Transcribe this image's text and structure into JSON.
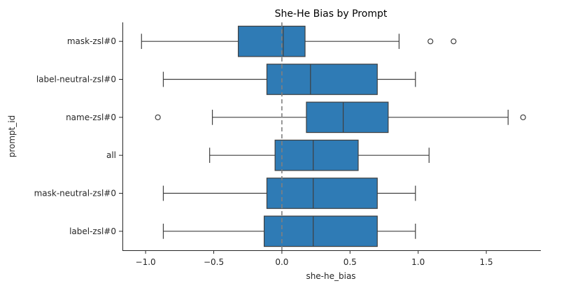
{
  "chart_data": {
    "type": "box",
    "orientation": "horizontal",
    "title": "She-He Bias by Prompt",
    "xlabel": "she-he_bias",
    "ylabel": "prompt_id",
    "xlim": [
      -1.17,
      1.9
    ],
    "xticks": [
      -1.0,
      -0.5,
      0.0,
      0.5,
      1.0,
      1.5
    ],
    "xtick_labels": [
      "−1.0",
      "−0.5",
      "0.0",
      "0.5",
      "1.0",
      "1.5"
    ],
    "reference_line": {
      "x": 0.0,
      "style": "dashed",
      "color": "#808080"
    },
    "box_color": "#2f7bb5",
    "categories": [
      "mask-zsl#0",
      "label-neutral-zsl#0",
      "name-zsl#0",
      "all",
      "mask-neutral-zsl#0",
      "label-zsl#0"
    ],
    "boxes": [
      {
        "label": "mask-zsl#0",
        "whisker_low": -1.03,
        "q1": -0.32,
        "median": 0.01,
        "q3": 0.17,
        "whisker_high": 0.86,
        "outliers": [
          1.09,
          1.26
        ]
      },
      {
        "label": "label-neutral-zsl#0",
        "whisker_low": -0.87,
        "q1": -0.11,
        "median": 0.21,
        "q3": 0.7,
        "whisker_high": 0.98,
        "outliers": []
      },
      {
        "label": "name-zsl#0",
        "whisker_low": -0.51,
        "q1": 0.18,
        "median": 0.45,
        "q3": 0.78,
        "whisker_high": 1.66,
        "outliers": [
          -0.91,
          1.77
        ]
      },
      {
        "label": "all",
        "whisker_low": -0.53,
        "q1": -0.05,
        "median": 0.23,
        "q3": 0.56,
        "whisker_high": 1.08,
        "outliers": []
      },
      {
        "label": "mask-neutral-zsl#0",
        "whisker_low": -0.87,
        "q1": -0.11,
        "median": 0.23,
        "q3": 0.7,
        "whisker_high": 0.98,
        "outliers": []
      },
      {
        "label": "label-zsl#0",
        "whisker_low": -0.87,
        "q1": -0.13,
        "median": 0.23,
        "q3": 0.7,
        "whisker_high": 0.98,
        "outliers": []
      }
    ]
  }
}
